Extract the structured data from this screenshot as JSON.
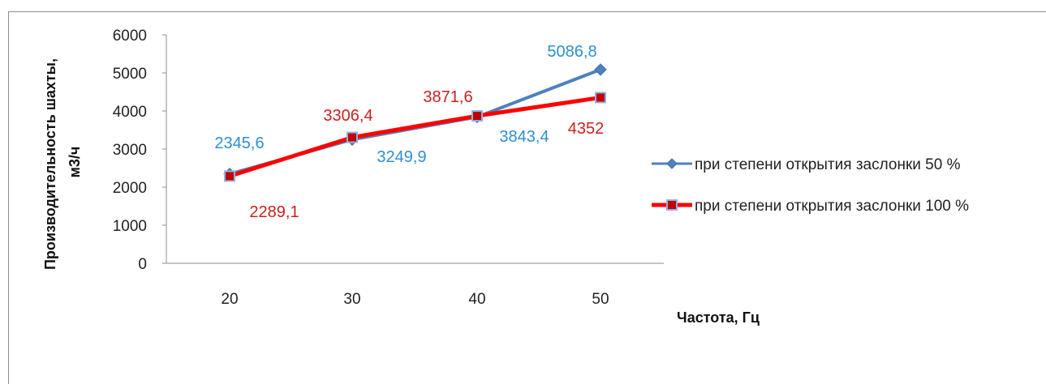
{
  "chart_data": {
    "type": "line",
    "title": "",
    "xlabel": "Частота, Гц",
    "ylabel_lines": [
      "Производительность шахты,",
      "м3/ч"
    ],
    "categories": [
      "20",
      "30",
      "40",
      "50"
    ],
    "yticks": [
      "0",
      "1000",
      "2000",
      "3000",
      "4000",
      "5000",
      "6000"
    ],
    "ylim": [
      0,
      6000
    ],
    "grid": false,
    "legend_position": "right",
    "series": [
      {
        "name": "при степени открытия заслонки 50 %",
        "values": [
          2345.6,
          3249.9,
          3843.4,
          5086.8
        ],
        "labels": [
          "2345,6",
          "3249,9",
          "3843,4",
          "5086,8"
        ],
        "color": "#4f81bd",
        "label_color": "#2e8fcf",
        "marker": "diamond"
      },
      {
        "name": "при степени открытия заслонки 100 %",
        "values": [
          2289.1,
          3306.4,
          3871.6,
          4352
        ],
        "labels": [
          "2289,1",
          "3306,4",
          "3871,6",
          "4352"
        ],
        "color": "#ff0000",
        "label_color": "#cc1f1f",
        "marker": "square"
      }
    ]
  }
}
